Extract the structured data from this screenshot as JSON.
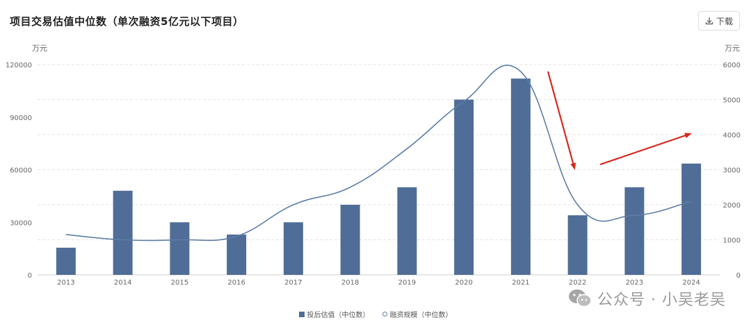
{
  "header": {
    "title": "项目交易估值中位数（单次融资5亿元以下项目）",
    "download_label": "下载",
    "download_icon": "download-icon"
  },
  "units": {
    "left": "万元",
    "right": "万元"
  },
  "watermark": {
    "text": "公众号 · 小吴老吴",
    "icon": "wechat-icon"
  },
  "legend": {
    "bar_label": "投后估值（中位数）",
    "line_label": "融资规模（中位数）"
  },
  "colors": {
    "bar": "#4f6d97",
    "line": "#5d7ea6",
    "arrow": "#d9261c",
    "grid": "#e3e3e3"
  },
  "chart_data": {
    "type": "bar",
    "categories": [
      "2013",
      "2014",
      "2015",
      "2016",
      "2017",
      "2018",
      "2019",
      "2020",
      "2021",
      "2022",
      "2023",
      "2024"
    ],
    "series": [
      {
        "name": "投后估值（中位数）",
        "type": "bar",
        "axis": "left",
        "values": [
          15500,
          48000,
          30000,
          23000,
          30000,
          40000,
          50000,
          100000,
          112000,
          34000,
          50000,
          63500
        ]
      },
      {
        "name": "融资规模（中位数）",
        "type": "line",
        "smooth": true,
        "axis": "right",
        "values": [
          1150,
          1000,
          1000,
          1100,
          2000,
          2500,
          3600,
          4950,
          5800,
          2000,
          1700,
          2100
        ]
      }
    ],
    "y_left": {
      "min": 0,
      "max": 120000,
      "ticks": [
        0,
        30000,
        60000,
        90000,
        120000
      ]
    },
    "y_right": {
      "min": 0,
      "max": 6000,
      "ticks": [
        0,
        1000,
        2000,
        3000,
        4000,
        5000,
        6000
      ]
    },
    "grid": true,
    "legend_position": "bottom-center"
  }
}
